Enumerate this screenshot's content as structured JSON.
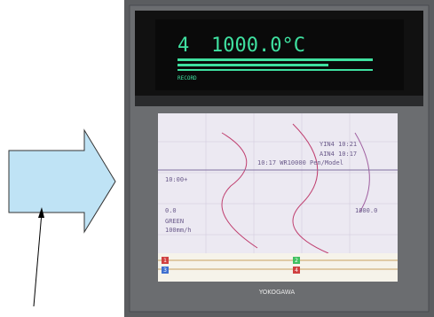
{
  "display": {
    "channel": "4",
    "reading": "1000.0°C",
    "status": "RECORD"
  },
  "chart_paper": {
    "lines": [
      "YIN4 10:21",
      "AIN4 10:17",
      "10:17 WR10000 Pen/Model",
      "10:00+",
      "0.0",
      "1000.0",
      "GREEN",
      "100mm/h"
    ]
  },
  "pens": [
    "1",
    "2",
    "3",
    "4"
  ],
  "brand": "YOKOGAWA"
}
